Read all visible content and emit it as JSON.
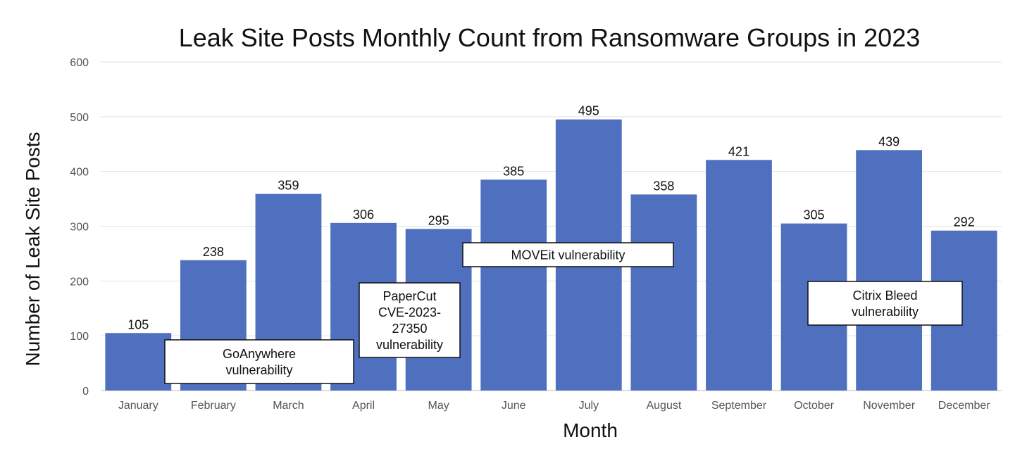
{
  "chart_data": {
    "type": "bar",
    "title": "Leak Site Posts Monthly Count from Ransomware Groups in 2023",
    "xlabel": "Month",
    "ylabel": "Number of Leak Site Posts",
    "categories": [
      "January",
      "February",
      "March",
      "April",
      "May",
      "June",
      "July",
      "August",
      "September",
      "October",
      "November",
      "December"
    ],
    "values": [
      105,
      238,
      359,
      306,
      295,
      385,
      495,
      358,
      421,
      305,
      439,
      292
    ],
    "ylim": [
      0,
      600
    ],
    "yticks": [
      0,
      100,
      200,
      300,
      400,
      500,
      600
    ],
    "grid": true,
    "legend": "none",
    "bar_color": "#4f6fbf",
    "data_labels": true,
    "annotations": [
      {
        "lines": [
          "GoAnywhere",
          "vulnerability"
        ]
      },
      {
        "lines": [
          "PaperCut",
          "CVE-2023-",
          "27350",
          "vulnerability"
        ]
      },
      {
        "lines": [
          "MOVEit vulnerability"
        ]
      },
      {
        "lines": [
          "Citrix Bleed",
          "vulnerability"
        ]
      }
    ]
  }
}
